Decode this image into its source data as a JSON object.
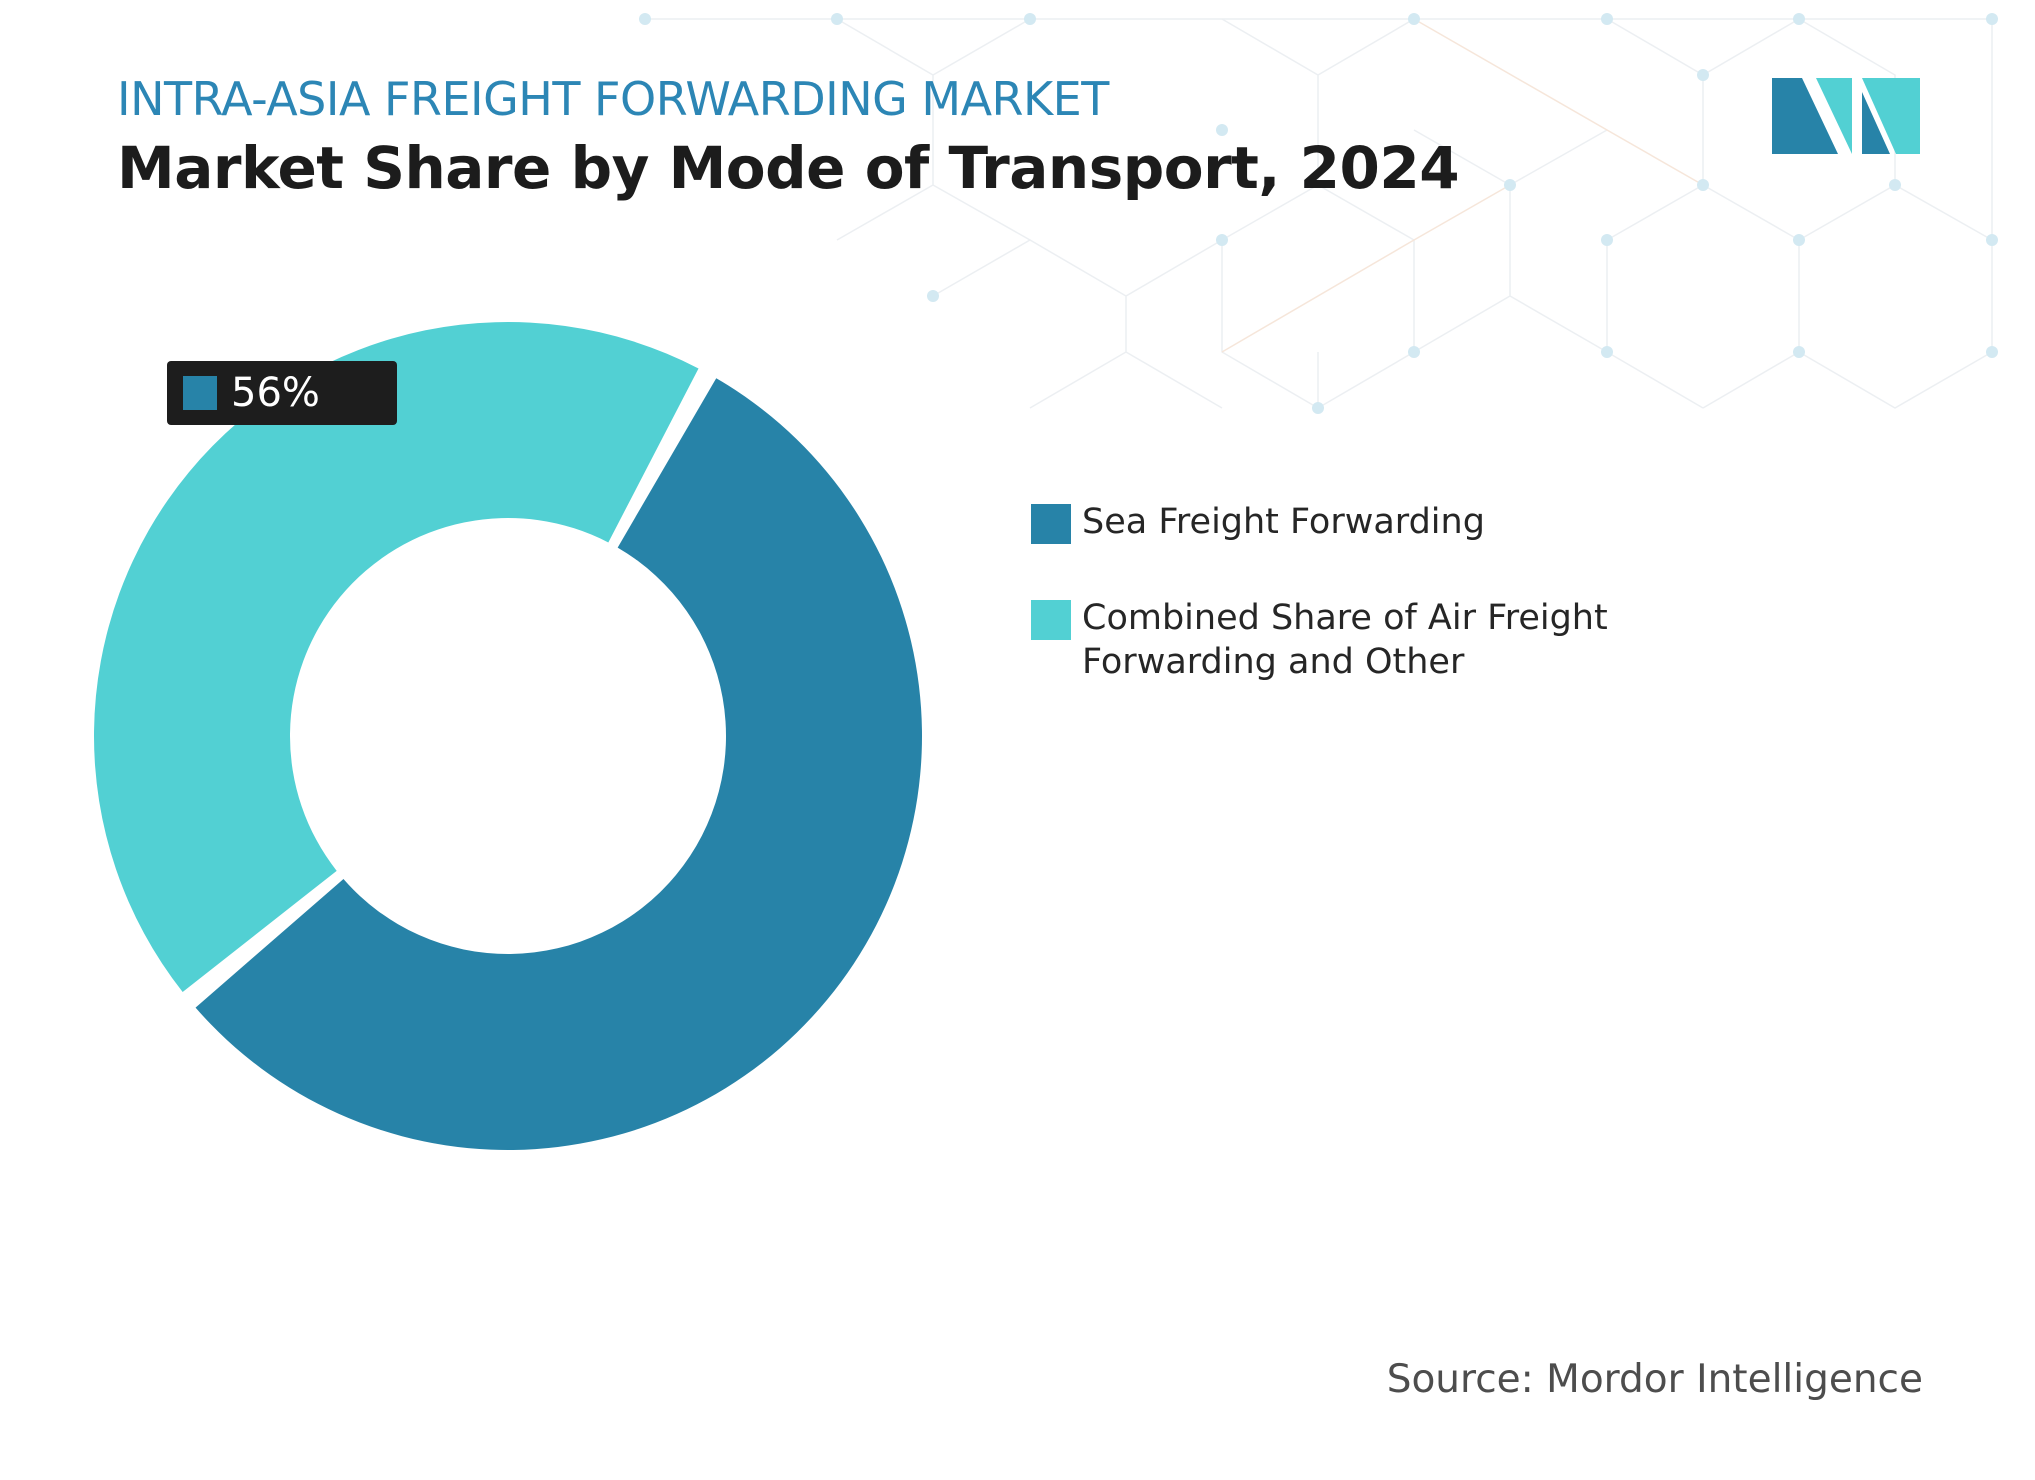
{
  "header": {
    "subtitle": "INTRA-ASIA FREIGHT FORWARDING MARKET",
    "title": "Market Share by Mode of Transport, 2024"
  },
  "colors": {
    "sea": "#2783a8",
    "combined": "#52d0d3",
    "subtitle": "#2c86b5",
    "label_bg": "#1d1d1d"
  },
  "logo": {
    "icon": "mordor-intelligence-logo-icon"
  },
  "chart_data": {
    "type": "pie",
    "variant": "donut",
    "title": "Market Share by Mode of Transport, 2024",
    "categories": [
      "Sea Freight Forwarding",
      "Combined Share of Air Freight Forwarding and Other"
    ],
    "values": [
      56,
      44
    ],
    "unit": "%",
    "data_labels": [
      "56%"
    ],
    "legend_placement": "right"
  },
  "legend": {
    "items": [
      {
        "label": "Sea Freight Forwarding"
      },
      {
        "label": "Combined Share of Air Freight Forwarding and Other"
      }
    ]
  },
  "source": "Source: Mordor Intelligence"
}
